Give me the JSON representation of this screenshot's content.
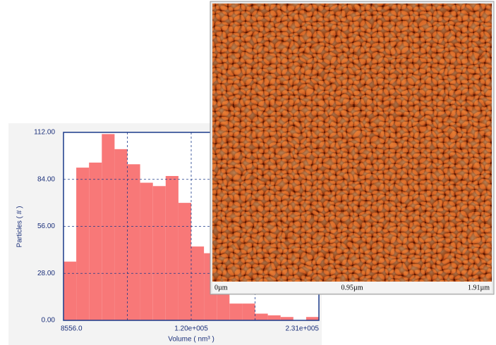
{
  "chart_data": {
    "type": "histogram",
    "x_label": "Volume ( nm³ )",
    "y_label": "Particles ( # )",
    "bins": [
      8556,
      19678.2,
      30800.4,
      41922.6,
      53044.8,
      64167,
      75289.2,
      86411.4,
      97533.6,
      108655.8,
      119778,
      130900.2,
      142022.4,
      153144.6,
      164266.8,
      175389,
      186511.2,
      197633.4,
      208755.6,
      219877.8,
      231000
    ],
    "values": [
      35,
      91,
      94,
      111,
      102,
      93,
      82,
      80,
      86,
      70,
      44,
      40,
      17,
      10,
      10,
      4,
      3,
      2,
      0,
      2
    ],
    "color": "#f87878",
    "xlim": [
      8556,
      231000
    ],
    "xticks": [
      {
        "value": 8556,
        "label": "8556.0"
      },
      {
        "value": 64167,
        "label": null
      },
      {
        "value": 119778,
        "label": "1.20e+005"
      },
      {
        "value": 175389,
        "label": null
      },
      {
        "value": 231000,
        "label": "2.31e+005"
      }
    ],
    "ylim": [
      0,
      112
    ],
    "yticks": [
      {
        "value": 0,
        "label": "0.00"
      },
      {
        "value": 28,
        "label": "28.00"
      },
      {
        "value": 56,
        "label": "56.00"
      },
      {
        "value": 84,
        "label": "84.00"
      },
      {
        "value": 112,
        "label": "112.00"
      }
    ],
    "grid": true
  },
  "image": {
    "scale_labels": [
      "0µm",
      "0.95µm",
      "1.91µm"
    ]
  }
}
